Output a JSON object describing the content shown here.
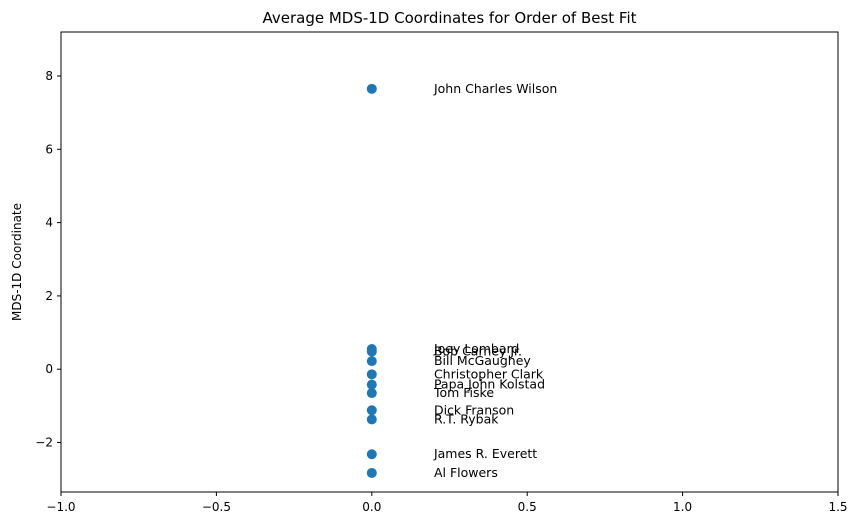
{
  "chart_data": {
    "type": "scatter",
    "title": "Average MDS-1D Coordinates for Order of Best Fit",
    "xlabel": "",
    "ylabel": "MDS-1D Coordinate",
    "xlim": [
      -1.0,
      1.5
    ],
    "ylim": [
      -3.35,
      9.2
    ],
    "xticks": [
      -1.0,
      -0.5,
      0.0,
      0.5,
      1.0,
      1.5
    ],
    "xtick_labels": [
      "−1.0",
      "−0.5",
      "0.0",
      "0.5",
      "1.0",
      "1.5"
    ],
    "yticks": [
      -2,
      0,
      2,
      4,
      6,
      8
    ],
    "ytick_labels": [
      "−2",
      "0",
      "2",
      "4",
      "6",
      "8"
    ],
    "grid": false,
    "point_color": "#1f77b4",
    "label_x_offset": 0.2,
    "points": [
      {
        "label": "John Charles Wilson",
        "x": 0,
        "y": 7.65
      },
      {
        "label": "Joey Lombard",
        "x": 0,
        "y": 0.55
      },
      {
        "label": "Bob Carney Jr.",
        "x": 0,
        "y": 0.48
      },
      {
        "label": "Bill McGaughey",
        "x": 0,
        "y": 0.22
      },
      {
        "label": "Christopher Clark",
        "x": 0,
        "y": -0.14
      },
      {
        "label": "Papa John Kolstad",
        "x": 0,
        "y": -0.42
      },
      {
        "label": "Tom Fiske",
        "x": 0,
        "y": -0.65
      },
      {
        "label": "Dick Franson",
        "x": 0,
        "y": -1.12
      },
      {
        "label": "R.T. Rybak",
        "x": 0,
        "y": -1.37
      },
      {
        "label": "James R. Everett",
        "x": 0,
        "y": -2.32
      },
      {
        "label": "Al Flowers",
        "x": 0,
        "y": -2.83
      }
    ]
  }
}
